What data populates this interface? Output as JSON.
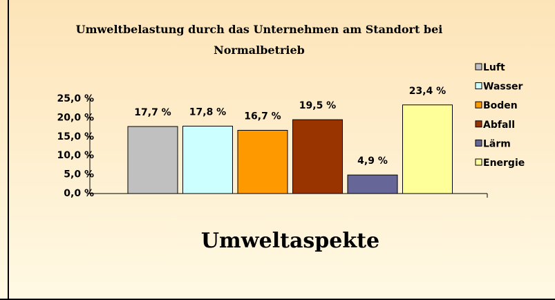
{
  "chart_data": {
    "type": "bar",
    "title": "Umweltbelastung durch das Unternehmen am Standort bei Normalbetrieb",
    "x_label": "Umweltaspekte",
    "series": [
      {
        "name": "Luft",
        "color": "#c0c0c0",
        "values": [
          17.7
        ],
        "value_labels": [
          "17,7 %"
        ]
      },
      {
        "name": "Wasser",
        "color": "#ccffff",
        "values": [
          17.8
        ],
        "value_labels": [
          "17,8 %"
        ]
      },
      {
        "name": "Boden",
        "color": "#ff9900",
        "values": [
          16.7
        ],
        "value_labels": [
          "16,7 %"
        ]
      },
      {
        "name": "Abfall",
        "color": "#993300",
        "values": [
          19.5
        ],
        "value_labels": [
          "19,5 %"
        ]
      },
      {
        "name": "Lärm",
        "color": "#666699",
        "values": [
          4.9
        ],
        "value_labels": [
          "4,9 %"
        ]
      },
      {
        "name": "Energie",
        "color": "#ffff99",
        "values": [
          23.4
        ],
        "value_labels": [
          "23,4 %"
        ]
      }
    ],
    "ylim": [
      0,
      25
    ],
    "yticks": [
      {
        "value": 0,
        "label": "0,0 %"
      },
      {
        "value": 5,
        "label": "5,0 %"
      },
      {
        "value": 10,
        "label": "10,0 %"
      },
      {
        "value": 15,
        "label": "15,0 %"
      },
      {
        "value": 20,
        "label": "20,0 %"
      },
      {
        "value": 25,
        "label": "25,0 %"
      }
    ],
    "legend": "right"
  }
}
